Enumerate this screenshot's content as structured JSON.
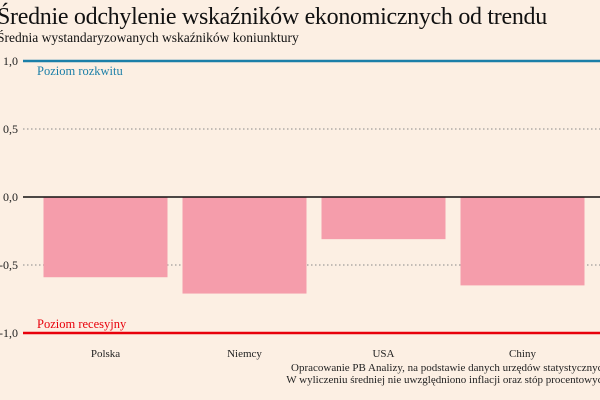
{
  "chart_data": {
    "type": "bar",
    "title": "Średnie odchylenie wskaźników ekonomicznych od trendu",
    "subtitle": "Średnia wystandaryzowanych wskaźników koniunktury",
    "categories": [
      "Polska",
      "Niemcy",
      "USA",
      "Chiny"
    ],
    "values": [
      -0.59,
      -0.71,
      -0.31,
      -0.65
    ],
    "ylim": [
      -1.0,
      1.0
    ],
    "yticks": [
      1.0,
      0.5,
      0.0,
      -0.5,
      -1.0
    ],
    "ytick_labels": [
      "1,0",
      "0,5",
      "0,0",
      "-0,5",
      "-1,0"
    ],
    "grid": "dotted at ±0,5",
    "reference_lines": [
      {
        "value": 1.0,
        "label": "Poziom rozkwitu",
        "color": "#1b7fa8"
      },
      {
        "value": -1.0,
        "label": "Poziom recesyjny",
        "color": "#e8000b"
      }
    ],
    "bar_color": "#f59dab",
    "notes": [
      "Opracowanie PB Analizy, na podstawie danych urzędów statystycznych",
      "W wyliczeniu średniej nie uwzględniono inflacji oraz stóp procentowych"
    ]
  }
}
